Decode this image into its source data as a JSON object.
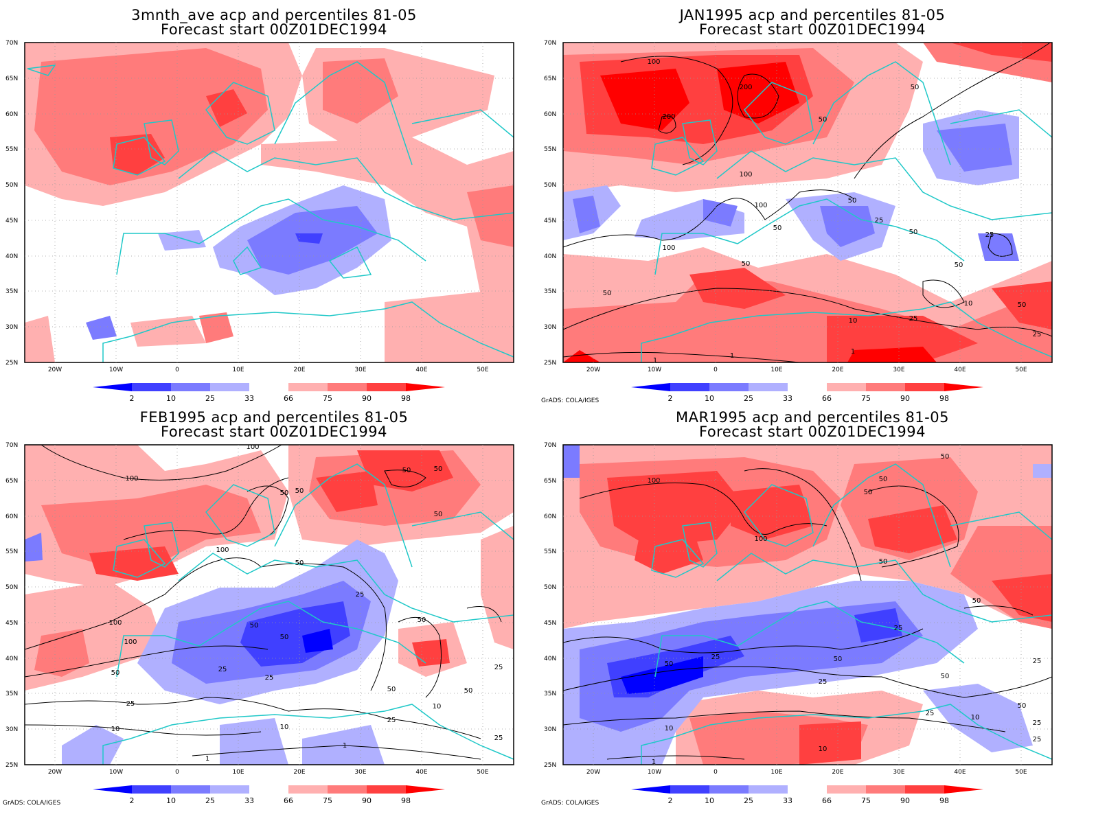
{
  "credit": "GrADS: COLA/IGES",
  "map": {
    "lat_labels": [
      "70N",
      "65N",
      "60N",
      "55N",
      "50N",
      "45N",
      "40N",
      "35N",
      "30N",
      "25N"
    ],
    "lon_labels": [
      "20W",
      "10W",
      "0",
      "10E",
      "20E",
      "30E",
      "40E",
      "50E"
    ],
    "extent": {
      "lon_min": -25,
      "lon_max": 55,
      "lat_min": 25,
      "lat_max": 70
    },
    "coast_color": "#1fc8c8"
  },
  "colorbar": {
    "labels": [
      "2",
      "10",
      "25",
      "33",
      "66",
      "75",
      "90",
      "98"
    ],
    "colors": [
      "#0000ff",
      "#4040ff",
      "#7b7bff",
      "#b0b0ff",
      "#ffffff",
      "#ffb0b0",
      "#ff7b7b",
      "#ff4040",
      "#ff0000"
    ]
  },
  "panels": [
    {
      "title1": "3mnth_ave acp and percentiles 81-05",
      "title2": "Forecast start 00Z01DEC1994",
      "contours": [],
      "show_credit": false
    },
    {
      "title1": "JAN1995 acp and percentiles 81-05",
      "title2": "Forecast start 00Z01DEC1994",
      "contours": [
        "100",
        "200",
        "200",
        "50",
        "100",
        "100",
        "50",
        "50",
        "25",
        "50",
        "25",
        "50",
        "50",
        "10",
        "25",
        "10",
        "50",
        "25",
        "1",
        "1",
        "1",
        "50",
        "100",
        "50"
      ],
      "show_credit": true
    },
    {
      "title1": "FEB1995 acp and percentiles 81-05",
      "title2": "Forecast start 00Z01DEC1994",
      "contours": [
        "100",
        "100",
        "50",
        "50",
        "50",
        "50",
        "50",
        "100",
        "50",
        "25",
        "50",
        "100",
        "100",
        "50",
        "25",
        "25",
        "50",
        "25",
        "10",
        "25",
        "10",
        "1",
        "1",
        "50",
        "50",
        "25",
        "10",
        "25",
        "50"
      ],
      "show_credit": true
    },
    {
      "title1": "MAR1995 acp and percentiles 81-05",
      "title2": "Forecast start 00Z01DEC1994",
      "contours": [
        "50",
        "100",
        "50",
        "50",
        "100",
        "50",
        "50",
        "25",
        "50",
        "25",
        "50",
        "25",
        "25",
        "10",
        "10",
        "25",
        "1",
        "50",
        "25",
        "10",
        "25",
        "50"
      ],
      "show_credit": true
    }
  ]
}
